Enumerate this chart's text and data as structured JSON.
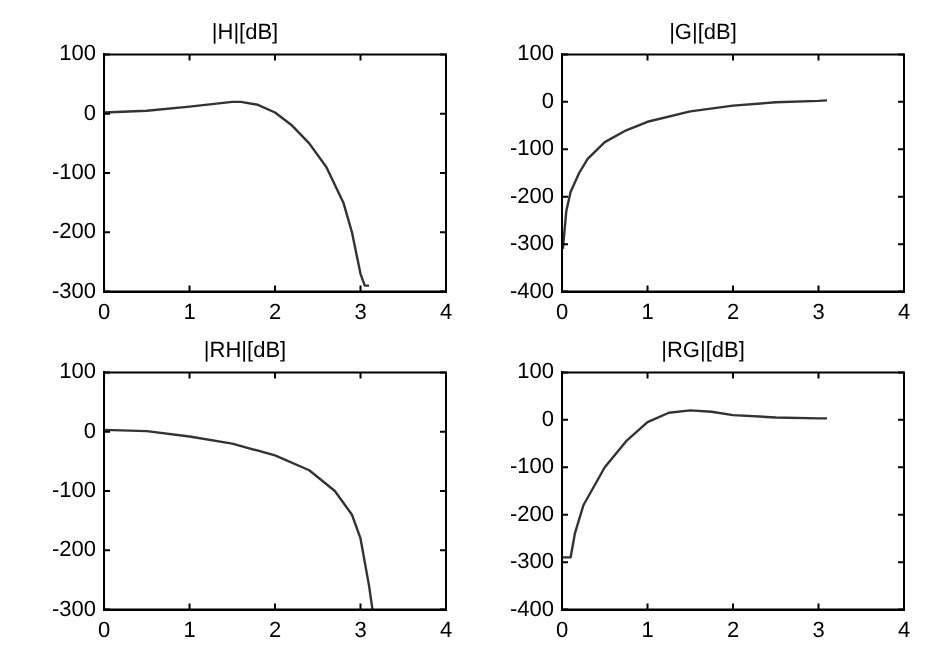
{
  "chart_data": [
    {
      "type": "line",
      "title": "|H|[dB]",
      "color": "#333333",
      "x": [
        0,
        0.5,
        1,
        1.5,
        1.6,
        1.8,
        2.0,
        2.2,
        2.4,
        2.6,
        2.8,
        2.9,
        3.0,
        3.05,
        3.1
      ],
      "values": [
        2,
        5,
        12,
        20,
        20,
        15,
        2,
        -20,
        -50,
        -90,
        -150,
        -200,
        -270,
        -290,
        -290
      ],
      "xlim": [
        0,
        4
      ],
      "xticks": [
        0,
        1,
        2,
        3,
        4
      ],
      "ylim": [
        -300,
        100
      ],
      "yticks": [
        -300,
        -200,
        -100,
        0,
        100
      ],
      "grid": false,
      "legend": false
    },
    {
      "type": "line",
      "title": "|G|[dB]",
      "color": "#333333",
      "x": [
        0.01,
        0.05,
        0.1,
        0.2,
        0.3,
        0.5,
        0.75,
        1,
        1.5,
        2,
        2.5,
        3,
        3.1
      ],
      "values": [
        -310,
        -230,
        -190,
        -150,
        -120,
        -85,
        -60,
        -42,
        -20,
        -8,
        -1,
        2,
        3
      ],
      "xlim": [
        0,
        4
      ],
      "xticks": [
        0,
        1,
        2,
        3,
        4
      ],
      "ylim": [
        -400,
        100
      ],
      "yticks": [
        -400,
        -300,
        -200,
        -100,
        0,
        100
      ],
      "grid": false,
      "legend": false
    },
    {
      "type": "line",
      "title": "|RH|[dB]",
      "color": "#333333",
      "x": [
        0,
        0.5,
        1,
        1.5,
        2,
        2.4,
        2.7,
        2.9,
        3.0,
        3.1,
        3.14
      ],
      "values": [
        3,
        1,
        -8,
        -20,
        -40,
        -65,
        -100,
        -140,
        -180,
        -260,
        -300
      ],
      "xlim": [
        0,
        4
      ],
      "xticks": [
        0,
        1,
        2,
        3,
        4
      ],
      "ylim": [
        -300,
        100
      ],
      "yticks": [
        -300,
        -200,
        -100,
        0,
        100
      ],
      "grid": false,
      "legend": false
    },
    {
      "type": "line",
      "title": "|RG|[dB]",
      "color": "#333333",
      "x": [
        0.01,
        0.1,
        0.15,
        0.25,
        0.5,
        0.75,
        1,
        1.25,
        1.5,
        1.75,
        2,
        2.5,
        3,
        3.1
      ],
      "values": [
        -290,
        -290,
        -240,
        -180,
        -100,
        -45,
        -5,
        15,
        20,
        17,
        10,
        5,
        3,
        3
      ],
      "xlim": [
        0,
        4
      ],
      "xticks": [
        0,
        1,
        2,
        3,
        4
      ],
      "ylim": [
        -400,
        100
      ],
      "yticks": [
        -400,
        -300,
        -200,
        -100,
        0,
        100
      ],
      "grid": false,
      "legend": false
    }
  ]
}
